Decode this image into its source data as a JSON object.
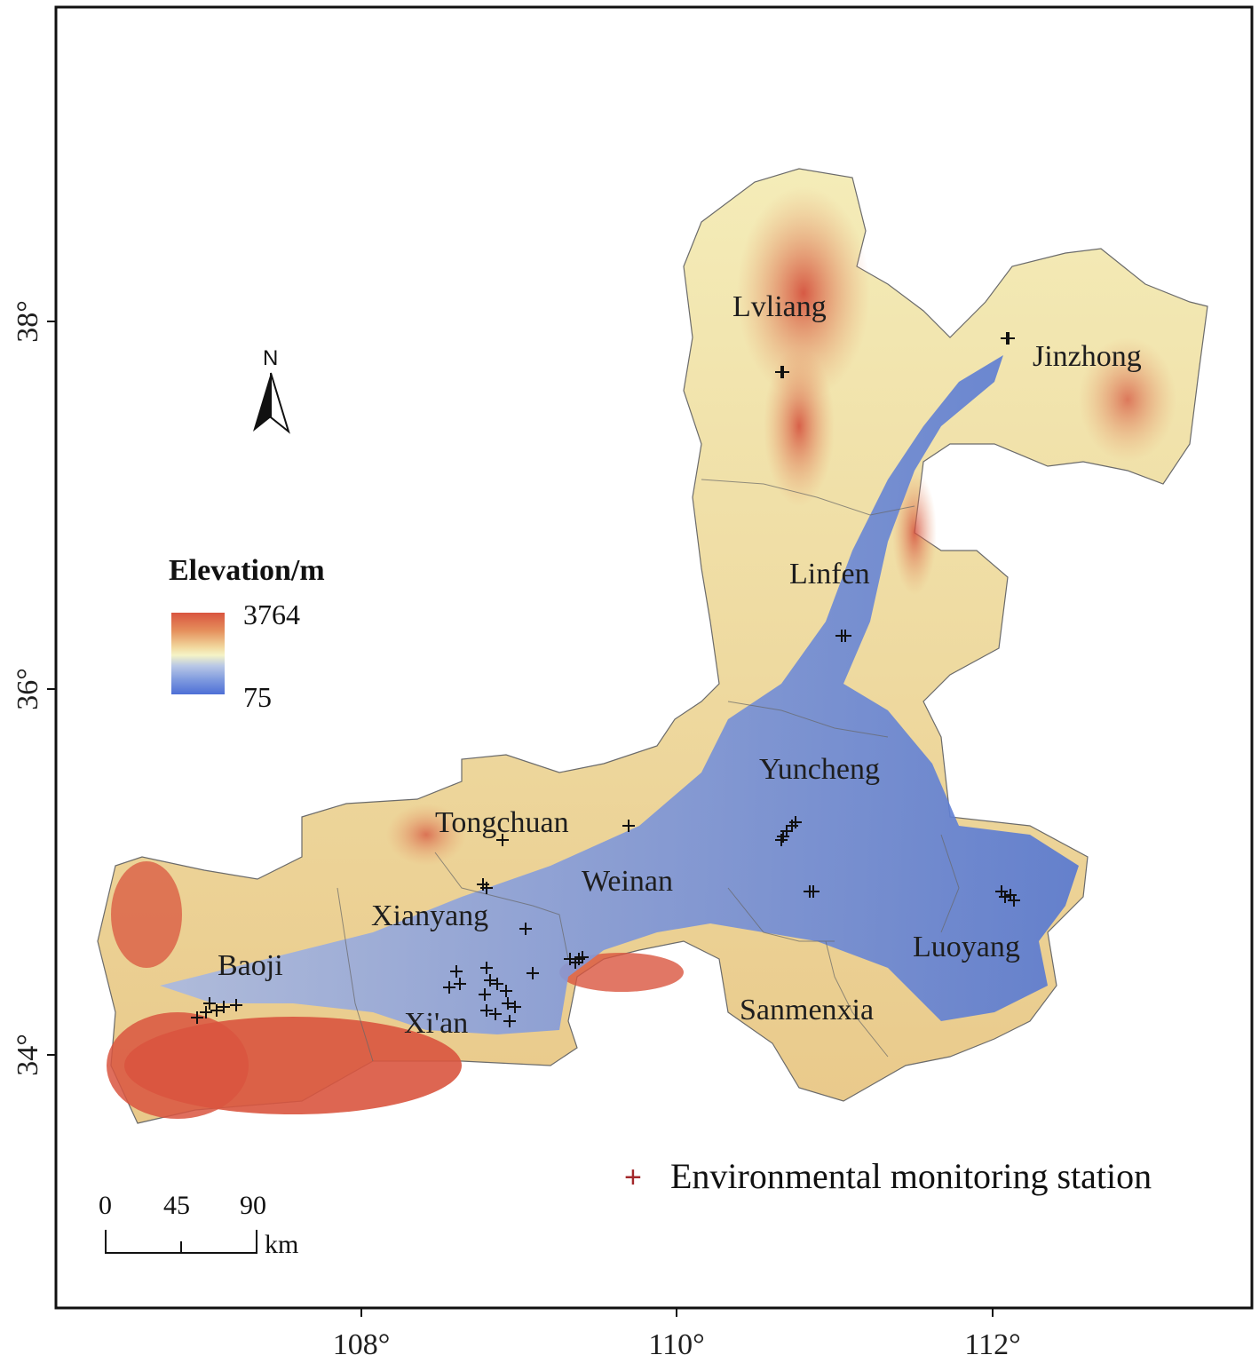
{
  "legend": {
    "title": "Elevation/m",
    "max_label": "3764",
    "min_label": "75",
    "colors": [
      "#d9553f",
      "#e58f5c",
      "#f1d79d",
      "#f5f3c6",
      "#b9c8e6",
      "#7f9adf",
      "#4d6fd6"
    ]
  },
  "north_arrow": {
    "label": "N",
    "icon": "north-arrow-icon"
  },
  "scale_bar": {
    "ticks": [
      "0",
      "45",
      "90"
    ],
    "unit": "km"
  },
  "axes": {
    "lon_ticks": [
      "108°",
      "110°",
      "112°"
    ],
    "lat_ticks": [
      "38°",
      "36°",
      "34°"
    ]
  },
  "cities": [
    {
      "id": "lvliang",
      "name": "Lvliang"
    },
    {
      "id": "jinzhong",
      "name": "Jinzhong"
    },
    {
      "id": "linfen",
      "name": "Linfen"
    },
    {
      "id": "yuncheng",
      "name": "Yuncheng"
    },
    {
      "id": "tongchuan",
      "name": "Tongchuan"
    },
    {
      "id": "weinan",
      "name": "Weinan"
    },
    {
      "id": "xianyang",
      "name": "Xianyang"
    },
    {
      "id": "baoji",
      "name": "Baoji"
    },
    {
      "id": "xian",
      "name": "Xi'an"
    },
    {
      "id": "sanmenxia",
      "name": "Sanmenxia"
    },
    {
      "id": "luoyang",
      "name": "Luoyang"
    }
  ],
  "station_legend": {
    "symbol": "+",
    "label": "Environmental monitoring station",
    "color": "#a3282b"
  }
}
